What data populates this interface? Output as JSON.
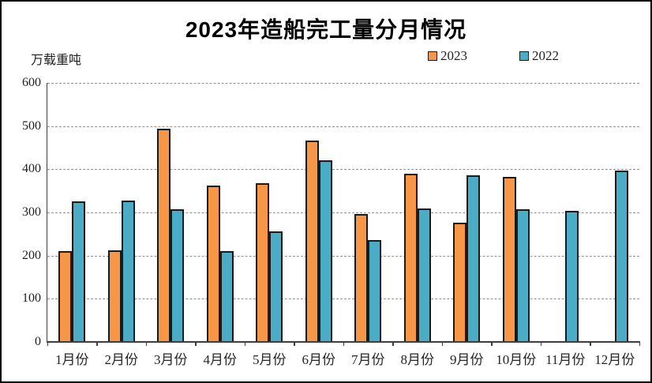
{
  "chart_data": {
    "type": "bar",
    "title": "2023年造船完工量分月情况",
    "ylabel": "万载重吨",
    "xlabel": "",
    "categories": [
      "1月份",
      "2月份",
      "3月份",
      "4月份",
      "5月份",
      "6月份",
      "7月份",
      "8月份",
      "9月份",
      "10月份",
      "11月份",
      "12月份"
    ],
    "series": [
      {
        "name": "2023",
        "color": "#F79646",
        "values": [
          211,
          212,
          494,
          363,
          368,
          466,
          297,
          389,
          277,
          382,
          null,
          null
        ]
      },
      {
        "name": "2022",
        "color": "#4BACC6",
        "values": [
          326,
          327,
          308,
          210,
          257,
          421,
          236,
          310,
          386,
          308,
          304,
          397
        ]
      }
    ],
    "ylim": [
      0,
      600
    ],
    "ytick_step": 100,
    "grid": "dashed-horizontal",
    "legend_position": "top-right",
    "bar_border_color": "#1a1a1a",
    "axis_color": "#3d3d3d"
  }
}
